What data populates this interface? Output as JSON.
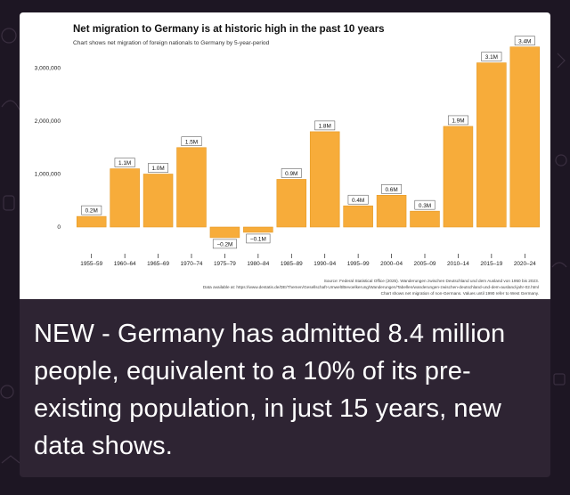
{
  "post": {
    "caption": "NEW - Germany has admitted 8.4 million people, equivalent to a 10% of its pre-existing population, in just 15 years, new data shows."
  },
  "colors": {
    "bar": "#f7ac3a",
    "bar_edge": "#e59a26",
    "background_dark": "#1d1623",
    "card_dark": "#2e2433"
  },
  "chart_data": {
    "type": "bar",
    "title": "Net migration to Germany is at historic high in the past 10 years",
    "subtitle": "Chart shows net migration of foreign nationals to Germany by 5-year-period",
    "categories": [
      "1955–59",
      "1960–64",
      "1965–69",
      "1970–74",
      "1975–79",
      "1980–84",
      "1985–89",
      "1990–94",
      "1995–99",
      "2000–04",
      "2005–09",
      "2010–14",
      "2015–19",
      "2020–24"
    ],
    "values": [
      0.2,
      1.1,
      1.0,
      1.5,
      -0.2,
      -0.1,
      0.9,
      1.8,
      0.4,
      0.6,
      0.3,
      1.9,
      3.1,
      3.4
    ],
    "value_labels": [
      "0.2M",
      "1.1M",
      "1.0M",
      "1.5M",
      "−0.2M",
      "−0.1M",
      "0.9M",
      "1.8M",
      "0.4M",
      "0.6M",
      "0.3M",
      "1.9M",
      "3.1M",
      "3.4M"
    ],
    "y_ticks": [
      0,
      1000000,
      2000000,
      3000000
    ],
    "y_tick_labels": [
      "0",
      "1,000,000",
      "2,000,000",
      "3,000,000"
    ],
    "ylim": [
      -300000,
      3450000
    ],
    "grid": false,
    "source": "Source: Federal Statistical Office (2025). Wanderungen zwischen Deutschland und dem Ausland von 1950 bis 2023.",
    "data_link_left": "Data available at: https://www.destatis.de/DE/Themen/Gesellschaft-Umwelt/Bevoelkerung/Wanderungen/Tabellen/wanderungen-zwischen-deutschland-und-dem-ausland-jahr-02.html",
    "note": "Chart shows net migration of non-Germans. Values until 1990 refer to West Germany."
  }
}
